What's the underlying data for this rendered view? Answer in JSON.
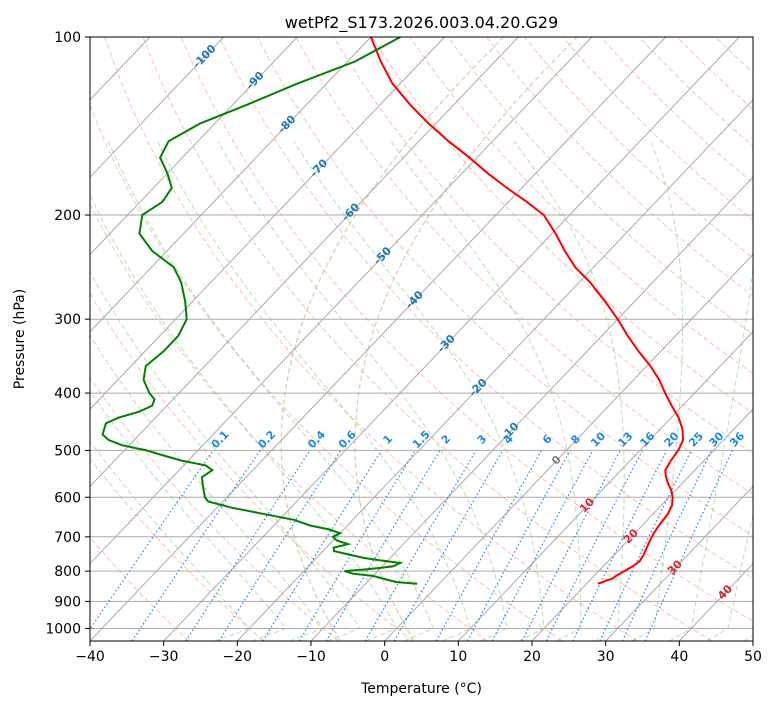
{
  "chart_data": {
    "type": "line",
    "title": "wetPf2_S173.2026.003.04.20.G29",
    "xlabel": "Temperature (°C)",
    "ylabel": "Pressure (hPa)",
    "xlim": [
      -40,
      50
    ],
    "ylim": [
      1050,
      100
    ],
    "y_scale": "log",
    "x_ticks": [
      -40,
      -30,
      -20,
      -10,
      0,
      10,
      20,
      30,
      40,
      50
    ],
    "x_tick_labels": [
      "−40",
      "−30",
      "−20",
      "−10",
      "0",
      "10",
      "20",
      "30",
      "40",
      "50"
    ],
    "y_ticks": [
      1000,
      900,
      800,
      700,
      600,
      500,
      400,
      300,
      200,
      100
    ],
    "y_tick_labels": [
      "1000",
      "900",
      "800",
      "700",
      "600",
      "500",
      "400",
      "300",
      "200",
      "100"
    ],
    "grid": true,
    "colors": {
      "temperature": "#ff0000",
      "dewpoint": "#008000",
      "isotherm": "#aaaaaa",
      "isobar": "#aaaaaa",
      "dry_adiabat": "#ff8c69",
      "moist_adiabat": "#5cb85c",
      "mixing_ratio": "#1e88e5",
      "isotherm_label": "#1f77b4",
      "temp_label": "#d62728",
      "zero_label": "#808080",
      "hail_arc": "#d2b48c"
    },
    "series": [
      {
        "name": "Temperature",
        "pressure": [
          840,
          835,
          830,
          825,
          815,
          800,
          785,
          770,
          750,
          730,
          710,
          690,
          670,
          640,
          620,
          600,
          585,
          570,
          555,
          540,
          520,
          500,
          480,
          460,
          440,
          420,
          400,
          380,
          360,
          340,
          320,
          300,
          280,
          260,
          245,
          230,
          215,
          200,
          190,
          180,
          170,
          160,
          150,
          140,
          130,
          120,
          110,
          100
        ],
        "temperature": [
          21.5,
          22.0,
          22.2,
          22.8,
          23.0,
          23.5,
          24.0,
          24.3,
          24.0,
          23.5,
          23.0,
          22.6,
          22.3,
          22.0,
          21.5,
          20.5,
          19.5,
          18.2,
          17.0,
          16.0,
          15.5,
          15.2,
          14.5,
          13.0,
          11.0,
          8.5,
          6.0,
          3.5,
          0.5,
          -3.0,
          -6.5,
          -10.0,
          -14.0,
          -18.5,
          -22.5,
          -26.0,
          -29.5,
          -33.5,
          -37.5,
          -42.0,
          -46.5,
          -51.0,
          -56.0,
          -61.0,
          -66.0,
          -71.0,
          -75.5,
          -80.0
        ]
      },
      {
        "name": "Dewpoint",
        "pressure": [
          840,
          835,
          825,
          815,
          808,
          800,
          795,
          790,
          785,
          775,
          770,
          760,
          750,
          740,
          730,
          720,
          710,
          700,
          690,
          680,
          670,
          655,
          640,
          625,
          610,
          600,
          585,
          570,
          555,
          540,
          530,
          520,
          510,
          500,
          490,
          480,
          470,
          460,
          450,
          440,
          430,
          420,
          410,
          400,
          380,
          360,
          340,
          320,
          300,
          280,
          260,
          245,
          230,
          215,
          200,
          190,
          180,
          170,
          160,
          150,
          140,
          130,
          120,
          110,
          100
        ],
        "temperature": [
          -3.0,
          -6.0,
          -8.0,
          -10.0,
          -13.0,
          -14.5,
          -12.0,
          -10.0,
          -8.5,
          -8.0,
          -10.0,
          -13.5,
          -16.0,
          -18.5,
          -19.0,
          -17.5,
          -19.5,
          -20.5,
          -20.0,
          -22.0,
          -25.0,
          -28.0,
          -33.0,
          -38.0,
          -42.0,
          -43.0,
          -44.0,
          -45.0,
          -46.0,
          -45.5,
          -47.0,
          -51.0,
          -54.0,
          -57.0,
          -61.0,
          -63.5,
          -65.0,
          -65.5,
          -66.0,
          -65.0,
          -63.0,
          -62.0,
          -62.5,
          -64.0,
          -66.5,
          -68.0,
          -67.5,
          -67.5,
          -68.5,
          -71.0,
          -74.0,
          -77.0,
          -82.0,
          -86.0,
          -88.0,
          -87.0,
          -87.5,
          -90.0,
          -93.0,
          -94.0,
          -92.0,
          -88.0,
          -84.0,
          -79.0,
          -76.0
        ]
      }
    ],
    "isotherm_labels": [
      {
        "temperature": -100,
        "text": "-100"
      },
      {
        "temperature": -90,
        "text": "-90"
      },
      {
        "temperature": -80,
        "text": "-80"
      },
      {
        "temperature": -70,
        "text": "-70"
      },
      {
        "temperature": -60,
        "text": "-60"
      },
      {
        "temperature": -50,
        "text": "-50"
      },
      {
        "temperature": -40,
        "text": "-40"
      },
      {
        "temperature": -30,
        "text": "-30"
      },
      {
        "temperature": -20,
        "text": "-20"
      },
      {
        "temperature": -10,
        "text": "-10"
      }
    ],
    "warm_isotherm_labels": [
      {
        "temperature": 0,
        "text": "0",
        "pressure": 520
      },
      {
        "temperature": 10,
        "text": "10",
        "pressure": 620
      },
      {
        "temperature": 20,
        "text": "20",
        "pressure": 700
      },
      {
        "temperature": 30,
        "text": "30",
        "pressure": 790
      },
      {
        "temperature": 40,
        "text": "40",
        "pressure": 870
      }
    ],
    "mixing_ratio_labels": [
      "0.1",
      "0.2",
      "0.4",
      "0.6",
      "1",
      "1.5",
      "2",
      "3",
      "4",
      "6",
      "8",
      "10",
      "13",
      "16",
      "20",
      "25",
      "30",
      "36"
    ],
    "mixing_ratio_values": [
      0.1,
      0.2,
      0.4,
      0.6,
      1,
      1.5,
      2,
      3,
      4,
      6,
      8,
      10,
      13,
      16,
      20,
      25,
      30,
      36
    ],
    "mixing_ratio_label_pressure": 480
  }
}
